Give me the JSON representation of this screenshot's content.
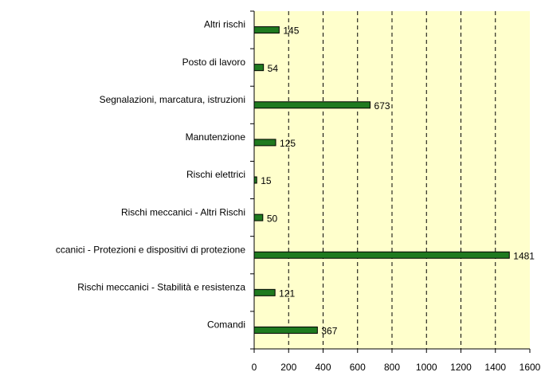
{
  "chart_data": {
    "type": "barh",
    "categories": [
      "Altri rischi",
      "Posto di lavoro",
      "Segnalazioni, marcatura, istruzioni",
      "Manutenzione",
      "Rischi elettrici",
      "Rischi meccanici - Altri Rischi",
      "ccanici - Protezioni e dispositivi di protezione",
      "Rischi meccanici - Stabilità e resistenza",
      "Comandi"
    ],
    "values": [
      145,
      54,
      673,
      125,
      15,
      50,
      1481,
      121,
      367
    ],
    "color": "#1f7a1f",
    "xlim": [
      0,
      1600
    ],
    "xticks": [
      0,
      200,
      400,
      600,
      800,
      1000,
      1200,
      1400,
      1600
    ],
    "grid": true
  }
}
